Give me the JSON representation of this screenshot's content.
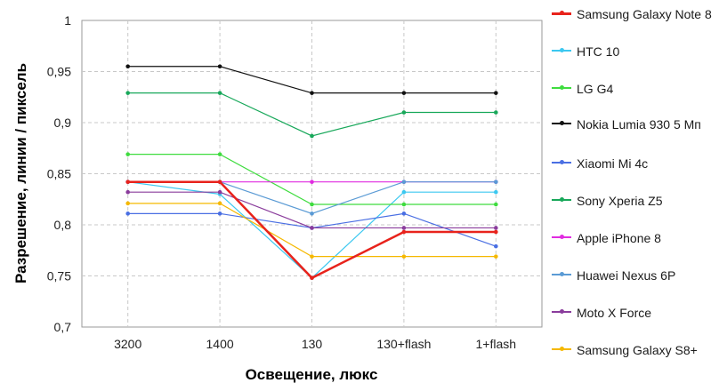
{
  "chart_data": {
    "type": "line",
    "title": "",
    "xlabel": "Освещение, люкс",
    "ylabel": "Разрешение, линии / пиксель",
    "categories": [
      "3200",
      "1400",
      "130",
      "130+flash",
      "1+flash"
    ],
    "ylim": [
      0.7,
      1
    ],
    "yticks": [
      "0,7",
      "0,75",
      "0,8",
      "0,85",
      "0,9",
      "0,95",
      "1"
    ],
    "grid": true,
    "legend": "right",
    "series": [
      {
        "name": "Samsung Galaxy Note 8",
        "color": "#e8231c",
        "values": [
          0.842,
          0.842,
          0.748,
          0.793,
          0.793
        ]
      },
      {
        "name": "HTC 10",
        "color": "#3cc8f0",
        "values": [
          0.842,
          0.83,
          0.748,
          0.832,
          0.832
        ]
      },
      {
        "name": "LG G4",
        "color": "#3fdc3f",
        "values": [
          0.869,
          0.869,
          0.82,
          0.82,
          0.82
        ]
      },
      {
        "name": "Nokia Lumia 930 5 Мп",
        "color": "#111111",
        "values": [
          0.955,
          0.955,
          0.929,
          0.929,
          0.929
        ]
      },
      {
        "name": "Xiaomi Mi 4c",
        "color": "#4a6fe3",
        "values": [
          0.811,
          0.811,
          0.797,
          0.811,
          0.779
        ]
      },
      {
        "name": "Sony Xperia Z5",
        "color": "#18a85a",
        "values": [
          0.929,
          0.929,
          0.887,
          0.91,
          0.91
        ]
      },
      {
        "name": "Apple iPhone 8",
        "color": "#e02ce0",
        "values": [
          0.842,
          0.842,
          0.842,
          0.842,
          0.842
        ]
      },
      {
        "name": "Huawei Nexus 6P",
        "color": "#5b9bd5",
        "values": [
          0.842,
          0.842,
          0.811,
          0.842,
          0.842
        ]
      },
      {
        "name": "Moto X Force",
        "color": "#8a3c9c",
        "values": [
          0.832,
          0.832,
          0.797,
          0.797,
          0.797
        ]
      },
      {
        "name": "Samsung Galaxy S8+",
        "color": "#f5b800",
        "values": [
          0.821,
          0.821,
          0.769,
          0.769,
          0.769
        ]
      }
    ]
  }
}
